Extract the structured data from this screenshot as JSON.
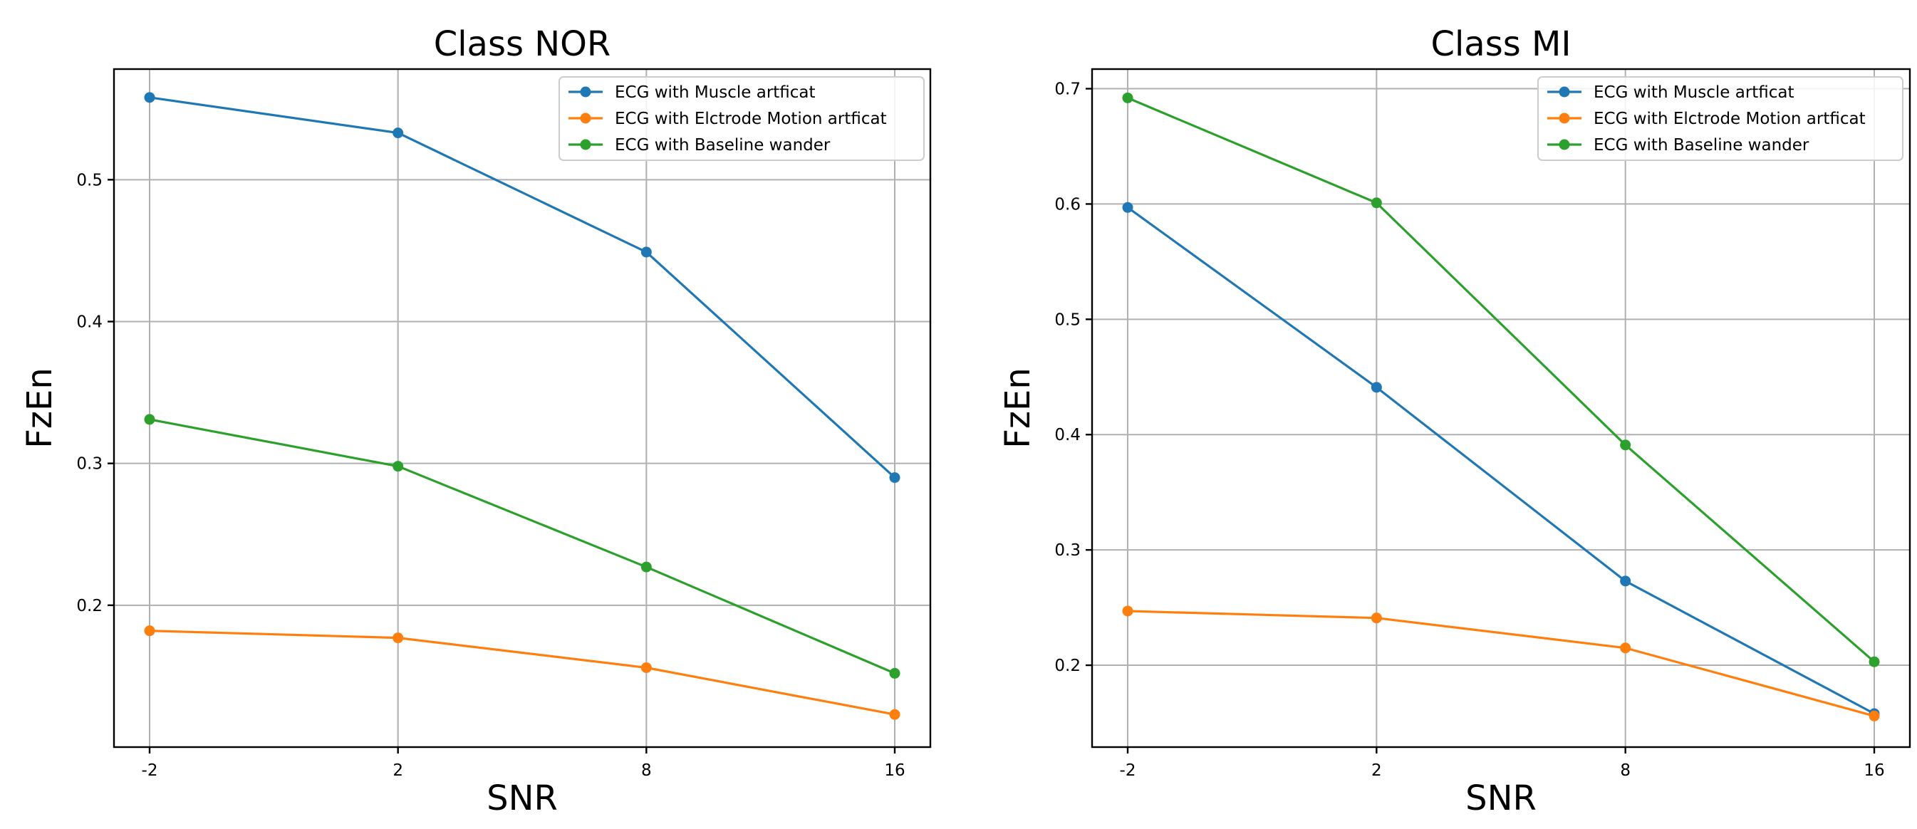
{
  "chart_data": [
    {
      "type": "line",
      "title": "Class NOR",
      "xlabel": "SNR",
      "ylabel": "FzEn",
      "categories": [
        "-2",
        "2",
        "8",
        "16"
      ],
      "ylim": [
        0.1,
        0.578
      ],
      "yticks": [
        0.2,
        0.3,
        0.4,
        0.5
      ],
      "ytick_labels": [
        "0.2",
        "0.3",
        "0.4",
        "0.5"
      ],
      "grid": true,
      "legend_position": "top-right",
      "series": [
        {
          "name": "ECG with Muscle artficat",
          "color": "#1f77b4",
          "values": [
            0.558,
            0.533,
            0.449,
            0.29
          ]
        },
        {
          "name": "ECG with Elctrode Motion artficat",
          "color": "#ff7f0e",
          "values": [
            0.182,
            0.177,
            0.156,
            0.123
          ]
        },
        {
          "name": "ECG with Baseline wander",
          "color": "#2ca02c",
          "values": [
            0.331,
            0.298,
            0.227,
            0.152
          ]
        }
      ]
    },
    {
      "type": "line",
      "title": "Class MI",
      "xlabel": "SNR",
      "ylabel": "FzEn",
      "categories": [
        "-2",
        "2",
        "8",
        "16"
      ],
      "ylim": [
        0.129,
        0.717
      ],
      "yticks": [
        0.2,
        0.3,
        0.4,
        0.5,
        0.6,
        0.7
      ],
      "ytick_labels": [
        "0.2",
        "0.3",
        "0.4",
        "0.5",
        "0.6",
        "0.7"
      ],
      "grid": true,
      "legend_position": "top-right",
      "series": [
        {
          "name": "ECG with Muscle artficat",
          "color": "#1f77b4",
          "values": [
            0.597,
            0.441,
            0.273,
            0.158
          ]
        },
        {
          "name": "ECG with Elctrode Motion artficat",
          "color": "#ff7f0e",
          "values": [
            0.247,
            0.241,
            0.215,
            0.156
          ]
        },
        {
          "name": "ECG with Baseline wander",
          "color": "#2ca02c",
          "values": [
            0.692,
            0.601,
            0.391,
            0.203
          ]
        }
      ]
    }
  ]
}
